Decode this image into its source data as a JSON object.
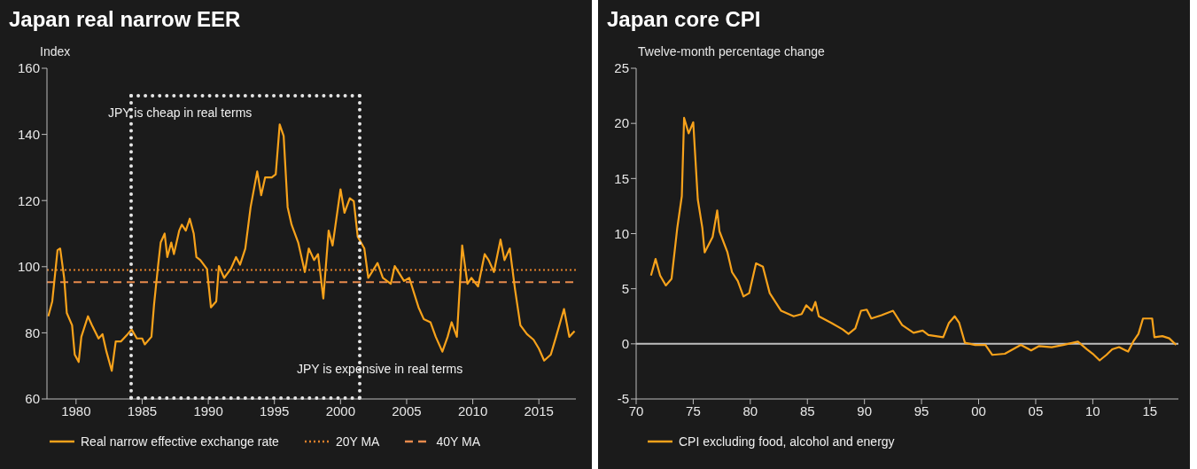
{
  "chart_data": [
    {
      "type": "line",
      "title": "Japan real narrow EER",
      "subtitle": "Index",
      "xlim": [
        1977.8,
        2017.8
      ],
      "xticks": [
        1980,
        1985,
        1990,
        1995,
        2000,
        2005,
        2010,
        2015
      ],
      "ylim": [
        60,
        160
      ],
      "yticks": [
        60,
        80,
        100,
        120,
        140,
        160
      ],
      "grid": false,
      "legend": "bottom",
      "series": [
        {
          "name": "Real narrow effective exchange rate",
          "color": "#f7a21b",
          "x": [
            1977.9,
            1978.2,
            1978.6,
            1978.8,
            1979.1,
            1979.3,
            1979.7,
            1979.9,
            1980.2,
            1980.4,
            1980.9,
            1981.2,
            1981.7,
            1982.0,
            1982.3,
            1982.7,
            1983.0,
            1983.4,
            1983.9,
            1984.2,
            1984.6,
            1985.0,
            1985.2,
            1985.7,
            1985.9,
            1986.2,
            1986.4,
            1986.7,
            1986.9,
            1987.2,
            1987.4,
            1987.8,
            1988.0,
            1988.3,
            1988.6,
            1988.9,
            1989.1,
            1989.4,
            1989.9,
            1990.2,
            1990.6,
            1990.8,
            1991.2,
            1991.7,
            1992.1,
            1992.4,
            1992.8,
            1993.2,
            1993.7,
            1994.0,
            1994.3,
            1994.8,
            1995.1,
            1995.4,
            1995.7,
            1996.0,
            1996.3,
            1996.8,
            1997.3,
            1997.6,
            1998.0,
            1998.3,
            1998.7,
            1999.1,
            1999.4,
            2000.0,
            2000.3,
            2000.7,
            2001.0,
            2001.3,
            2001.8,
            2002.1,
            2002.8,
            2003.2,
            2003.8,
            2004.1,
            2004.8,
            2005.2,
            2005.9,
            2006.3,
            2006.8,
            2007.2,
            2007.7,
            2008.1,
            2008.4,
            2008.8,
            2009.2,
            2009.6,
            2009.9,
            2010.4,
            2010.9,
            2011.2,
            2011.6,
            2012.1,
            2012.4,
            2012.8,
            2013.2,
            2013.6,
            2014.1,
            2014.6,
            2015.0,
            2015.4,
            2015.9,
            2016.3,
            2016.9,
            2017.3,
            2017.7
          ],
          "values": [
            85,
            89.5,
            105,
            105.5,
            96.6,
            86,
            82.3,
            73.4,
            71.2,
            78.8,
            85,
            82.3,
            78.3,
            79.6,
            74.3,
            68.5,
            77.4,
            77.4,
            79.6,
            81,
            78.3,
            78.3,
            76.5,
            78.8,
            88.6,
            100.2,
            107.3,
            110,
            102.9,
            107.3,
            103.8,
            110.9,
            112.7,
            110.9,
            114.5,
            110,
            102.9,
            102,
            99.3,
            87.7,
            89.5,
            100.2,
            96.6,
            99.3,
            102.9,
            100.6,
            105.5,
            118,
            128.8,
            121.6,
            127,
            127,
            127.9,
            143,
            139.5,
            118,
            112.7,
            107.3,
            98.4,
            105.5,
            102,
            103.8,
            90.4,
            110.9,
            106.4,
            123.4,
            116.3,
            120.7,
            119.8,
            109.1,
            105.5,
            96.6,
            101.1,
            96.6,
            94.8,
            100.2,
            95.7,
            96.6,
            87.7,
            84.1,
            83.2,
            78.8,
            74.3,
            78.8,
            83.2,
            78.8,
            106.4,
            94.8,
            96.6,
            94,
            103.8,
            102,
            98.4,
            108.2,
            102,
            105.5,
            93,
            82.3,
            79.6,
            77.9,
            75.2,
            71.6,
            73.4,
            78.8,
            87.2,
            78.8,
            80.5
          ]
        }
      ],
      "ref_lines": [
        {
          "axis": "y",
          "value": 99,
          "label": "20Y MA",
          "color": "#e0802a",
          "line_style": "dotted"
        },
        {
          "axis": "y",
          "value": 95.3,
          "label": "40Y MA",
          "color": "#e88a4c",
          "line_style": "dashed"
        }
      ],
      "annotations": [
        "JPY is cheap in real terms",
        "JPY is expensive in real terms"
      ]
    },
    {
      "type": "line",
      "title": "Japan core CPI",
      "subtitle": "Twelve-month percentage change",
      "xlim": [
        1970,
        2017.5
      ],
      "xticks": [
        {
          "value": 1970,
          "label": "70"
        },
        {
          "value": 1975,
          "label": "75"
        },
        {
          "value": 1980,
          "label": "80"
        },
        {
          "value": 1985,
          "label": "85"
        },
        {
          "value": 1990,
          "label": "90"
        },
        {
          "value": 1995,
          "label": "95"
        },
        {
          "value": 2000,
          "label": "00"
        },
        {
          "value": 2005,
          "label": "05"
        },
        {
          "value": 2010,
          "label": "10"
        },
        {
          "value": 2015,
          "label": "15"
        }
      ],
      "ylim": [
        -5,
        25
      ],
      "yticks": [
        -5,
        0,
        5,
        10,
        15,
        20,
        25
      ],
      "grid": false,
      "legend": "bottom",
      "series": [
        {
          "name": "CPI excluding food, alcohol and energy",
          "color": "#f7a21b",
          "x": [
            1971.3,
            1971.7,
            1972.1,
            1972.6,
            1973.1,
            1973.6,
            1974.0,
            1974.2,
            1974.6,
            1975.0,
            1975.4,
            1975.8,
            1976.0,
            1976.7,
            1977.1,
            1977.3,
            1978.0,
            1978.4,
            1978.9,
            1979.4,
            1979.9,
            1980.5,
            1981.1,
            1981.7,
            1982.7,
            1983.8,
            1984.5,
            1984.9,
            1985.4,
            1985.7,
            1986.0,
            1987.1,
            1988.1,
            1988.6,
            1989.2,
            1989.7,
            1990.2,
            1990.6,
            1991.5,
            1992.5,
            1993.3,
            1994.3,
            1995.1,
            1995.6,
            1996.9,
            1997.4,
            1997.9,
            1998.3,
            1998.8,
            1999.7,
            2000.6,
            2001.2,
            2002.3,
            2003.0,
            2003.7,
            2004.6,
            2005.3,
            2006.4,
            2007.4,
            2008.7,
            2009.5,
            2010.0,
            2010.6,
            2011.2,
            2011.7,
            2012.3,
            2013.1,
            2013.6,
            2014.0,
            2014.4,
            2015.2,
            2015.4,
            2016.1,
            2016.7,
            2017.3
          ],
          "values": [
            6.2,
            7.7,
            6.2,
            5.3,
            5.9,
            10.5,
            13.4,
            20.5,
            19.1,
            20.1,
            13.1,
            10.5,
            8.3,
            9.7,
            12.1,
            10.2,
            8.3,
            6.5,
            5.7,
            4.3,
            4.6,
            7.3,
            7.0,
            4.6,
            3.0,
            2.5,
            2.7,
            3.5,
            3.0,
            3.8,
            2.5,
            1.9,
            1.3,
            0.9,
            1.4,
            3.0,
            3.1,
            2.3,
            2.6,
            3.0,
            1.7,
            1.0,
            1.2,
            0.8,
            0.6,
            1.9,
            2.5,
            1.9,
            0.1,
            -0.1,
            -0.1,
            -1.0,
            -0.9,
            -0.5,
            -0.1,
            -0.6,
            -0.2,
            -0.3,
            -0.1,
            0.2,
            -0.5,
            -0.9,
            -1.5,
            -1.0,
            -0.5,
            -0.3,
            -0.7,
            0.3,
            0.9,
            2.3,
            2.3,
            0.6,
            0.7,
            0.5,
            -0.1
          ]
        }
      ],
      "ref_lines": [
        {
          "axis": "y",
          "value": 0,
          "color": "#bfbfbf",
          "line_style": "solid"
        }
      ]
    }
  ]
}
